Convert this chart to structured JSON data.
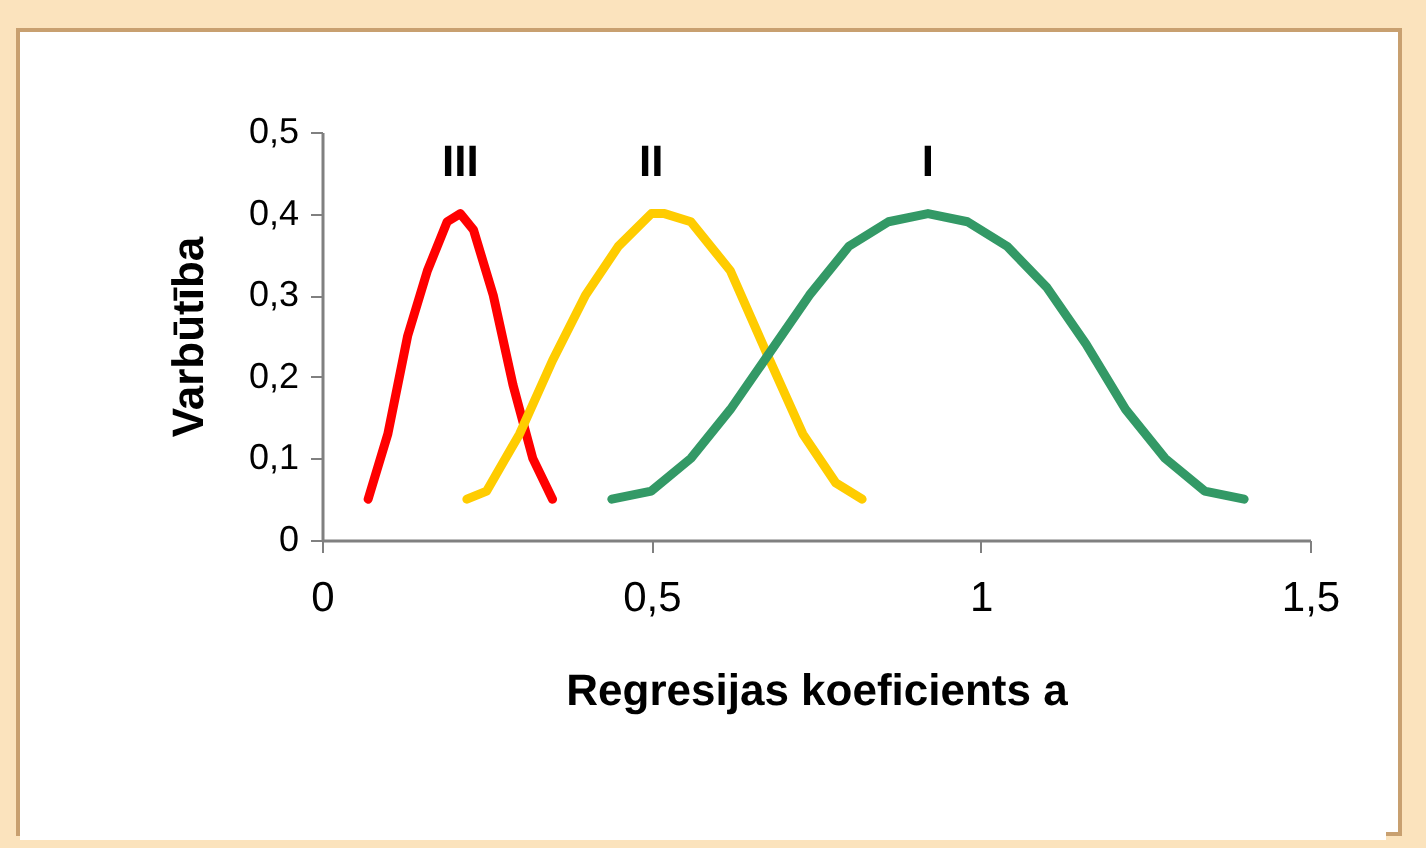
{
  "chart_data": {
    "type": "line",
    "xlabel": "Regresijas koeficients   a",
    "ylabel": "Varbūtība",
    "xlim": [
      0,
      1.5
    ],
    "xticks": [
      0,
      {
        "value": 0.5,
        "label": "0,5"
      },
      1,
      {
        "value": 1.5,
        "label": "1,5"
      }
    ],
    "ylim": [
      0,
      0.5
    ],
    "yticks": [
      0,
      {
        "value": 0.1,
        "label": "0,1"
      },
      {
        "value": 0.2,
        "label": "0,2"
      },
      {
        "value": 0.3,
        "label": "0,3"
      },
      {
        "value": 0.4,
        "label": "0,4"
      },
      {
        "value": 0.5,
        "label": "0,5"
      }
    ],
    "grid": false,
    "marker": "none",
    "line_style": "solid",
    "series": [
      {
        "name": "III",
        "color": "#ff0000",
        "x": [
          0.07,
          0.1,
          0.13,
          0.16,
          0.19,
          0.21,
          0.23,
          0.26,
          0.29,
          0.32,
          0.35
        ],
        "values": [
          0.05,
          0.13,
          0.25,
          0.33,
          0.39,
          0.4,
          0.38,
          0.3,
          0.19,
          0.1,
          0.05
        ]
      },
      {
        "name": "II",
        "color": "#ffcc00",
        "x": [
          0.22,
          0.25,
          0.3,
          0.35,
          0.4,
          0.45,
          0.5,
          0.52,
          0.56,
          0.62,
          0.68,
          0.73,
          0.78,
          0.82
        ],
        "values": [
          0.05,
          0.06,
          0.13,
          0.22,
          0.3,
          0.36,
          0.4,
          0.4,
          0.39,
          0.33,
          0.22,
          0.13,
          0.07,
          0.05
        ]
      },
      {
        "name": "I",
        "color": "#339966",
        "x": [
          0.44,
          0.5,
          0.56,
          0.62,
          0.68,
          0.74,
          0.8,
          0.86,
          0.92,
          0.98,
          1.04,
          1.1,
          1.16,
          1.22,
          1.28,
          1.34,
          1.4
        ],
        "values": [
          0.05,
          0.06,
          0.1,
          0.16,
          0.23,
          0.3,
          0.36,
          0.39,
          0.4,
          0.39,
          0.36,
          0.31,
          0.24,
          0.16,
          0.1,
          0.06,
          0.05
        ]
      }
    ]
  }
}
